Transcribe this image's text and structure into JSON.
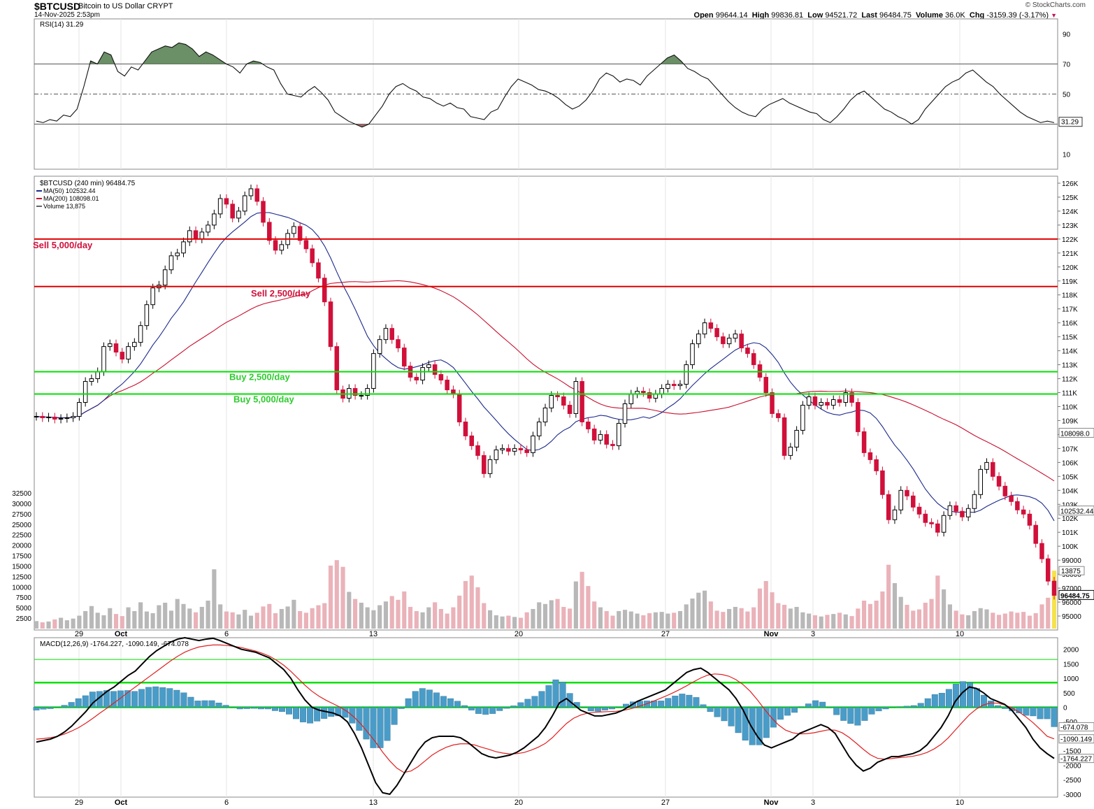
{
  "header": {
    "symbol": "$BTCUSD",
    "description": "Bitcoin to US Dollar  CRYPT",
    "timestamp": "14-Nov-2025 2:53pm",
    "brand": "© StockCharts.com",
    "quote": {
      "open_label": "Open",
      "open": "99644.14",
      "high_label": "High",
      "high": "99836.81",
      "low_label": "Low",
      "low": "94521.72",
      "last_label": "Last",
      "last": "96484.75",
      "volume_label": "Volume",
      "volume": "36.0K",
      "chg_label": "Chg",
      "chg": "-3159.39 (-3.17%)"
    }
  },
  "colors": {
    "up": "#000000",
    "down": "#d0103a",
    "ma50": "#1c2a8c",
    "ma200": "#c8102e",
    "sell_line": "#e00000",
    "buy_line": "#00e000",
    "rsi_fill_hi": "#6b8f66",
    "rsi_fill_lo": "#a06a6a",
    "macd_hist": "#4a9cc8",
    "signal": "#e02020",
    "vol_up": "#b8b8b8",
    "vol_down": "#eab2b9",
    "highlight": "#f5e24d"
  },
  "chart_data": [
    {
      "type": "line",
      "panel": "rsi",
      "legend": "RSI(14) 31.29",
      "ylim": [
        0,
        100
      ],
      "yticks": [
        10,
        30,
        50,
        70,
        90
      ],
      "ytick_labels": [
        "10",
        "",
        "50",
        "70",
        "90"
      ],
      "reference_lines": [
        30,
        50,
        70
      ],
      "current_label": "31.29",
      "values": [
        32,
        31,
        33,
        32,
        36,
        35,
        40,
        55,
        72,
        70,
        78,
        76,
        65,
        62,
        68,
        66,
        72,
        78,
        80,
        82,
        81,
        84,
        83,
        80,
        75,
        78,
        76,
        73,
        70,
        68,
        64,
        70,
        72,
        71,
        68,
        66,
        57,
        50,
        49,
        48,
        52,
        55,
        51,
        46,
        38,
        35,
        32,
        30,
        28,
        30,
        36,
        42,
        50,
        55,
        57,
        54,
        52,
        48,
        47,
        44,
        42,
        44,
        41,
        40,
        35,
        34,
        33,
        38,
        40,
        48,
        55,
        60,
        58,
        56,
        53,
        52,
        50,
        47,
        43,
        40,
        42,
        46,
        52,
        60,
        64,
        62,
        58,
        60,
        59,
        56,
        62,
        66,
        70,
        74,
        76,
        72,
        67,
        65,
        62,
        60,
        55,
        50,
        45,
        41,
        38,
        36,
        35,
        40,
        43,
        45,
        47,
        44,
        42,
        40,
        38,
        37,
        33,
        31,
        35,
        40,
        46,
        50,
        52,
        48,
        44,
        40,
        38,
        35,
        33,
        30,
        33,
        40,
        45,
        50,
        55,
        58,
        60,
        64,
        66,
        62,
        58,
        55,
        50,
        46,
        42,
        38,
        35,
        33,
        31,
        32,
        31
      ]
    },
    {
      "type": "candlestick",
      "panel": "price",
      "title": "$BTCUSD (240 min) 96484.75",
      "legend": [
        {
          "name": "MA(50) 102532.44",
          "color": "#1c2a8c"
        },
        {
          "name": "MA(200) 108098.01",
          "color": "#c8102e"
        },
        {
          "name": "Volume 13,875",
          "color": "#666666"
        }
      ],
      "ylim": [
        94000,
        126500
      ],
      "yticks": [
        95000,
        96000,
        97000,
        98000,
        99000,
        100000,
        101000,
        102000,
        103000,
        104000,
        105000,
        106000,
        107000,
        108000,
        109000,
        110000,
        111000,
        112000,
        113000,
        114000,
        115000,
        116000,
        117000,
        118000,
        119000,
        120000,
        121000,
        122000,
        123000,
        124000,
        125000,
        126000
      ],
      "ytick_labels": [
        "95000",
        "96000",
        "97000",
        "98000",
        "99000",
        "100K",
        "101K",
        "102K",
        "103K",
        "104K",
        "105K",
        "106K",
        "107K",
        "108K",
        "109K",
        "110K",
        "111K",
        "112K",
        "113K",
        "114K",
        "115K",
        "116K",
        "117K",
        "118K",
        "119K",
        "120K",
        "121K",
        "122K",
        "123K",
        "124K",
        "125K",
        "126K"
      ],
      "close": [
        109300,
        109200,
        109250,
        109100,
        109150,
        109200,
        109300,
        110300,
        111800,
        112000,
        112500,
        114300,
        114500,
        113900,
        113400,
        114300,
        114600,
        115800,
        117300,
        118500,
        118700,
        119800,
        120800,
        121000,
        121800,
        122600,
        122000,
        122500,
        123000,
        123800,
        124900,
        124500,
        123500,
        124000,
        125100,
        125600,
        124700,
        123200,
        121900,
        121200,
        121600,
        122400,
        122900,
        121900,
        121300,
        120300,
        119200,
        117500,
        114300,
        111200,
        110600,
        111300,
        110800,
        110800,
        111300,
        113800,
        114800,
        115600,
        114800,
        114200,
        112900,
        112100,
        111900,
        112800,
        113000,
        112300,
        111900,
        111200,
        110900,
        108900,
        107900,
        107200,
        106500,
        105200,
        106200,
        106900,
        107000,
        106800,
        107000,
        106900,
        106700,
        107900,
        108900,
        109900,
        110800,
        110700,
        110100,
        109500,
        111800,
        108900,
        108400,
        107600,
        108000,
        107300,
        107200,
        108800,
        110200,
        110900,
        111100,
        111000,
        110600,
        110900,
        111300,
        111600,
        111500,
        111600,
        113000,
        114500,
        115200,
        116000,
        115600,
        115000,
        114500,
        114900,
        115200,
        114200,
        113800,
        113000,
        112100,
        111000,
        109500,
        109200,
        106500,
        107100,
        108300,
        110100,
        110700,
        110100,
        110300,
        110100,
        110500,
        110300,
        111000,
        110300,
        108200,
        106700,
        106200,
        105400,
        103700,
        101900,
        102600,
        104000,
        103600,
        102800,
        102300,
        101700,
        101600,
        101000,
        102200,
        102900,
        102500,
        102100,
        102700,
        103700,
        105500,
        106000,
        105000,
        104300,
        103600,
        103200,
        102600,
        102300,
        101500,
        100200,
        99100,
        97500,
        96485
      ],
      "annotations": [
        {
          "label": "Sell 5,000/day",
          "price": 122000,
          "color": "#e00000"
        },
        {
          "label": "Sell 2,500/day",
          "price": 118600,
          "color": "#e00000"
        },
        {
          "label": "Buy 2,500/day",
          "price": 112500,
          "color": "#00e000"
        },
        {
          "label": "Buy 5,000/day",
          "price": 110900,
          "color": "#00e000"
        }
      ],
      "price_labels": [
        "108098.0",
        "102532.44",
        "96484.75"
      ]
    },
    {
      "type": "bar",
      "panel": "volume",
      "ylim": [
        0,
        33000
      ],
      "yticks": [
        2500,
        5000,
        7500,
        10000,
        12500,
        15000,
        17500,
        20000,
        22500,
        25000,
        27500,
        30000,
        32500
      ],
      "ytick_labels": [
        "2500",
        "5000",
        "7500",
        "10000",
        "12500",
        "15000",
        "17500",
        "20000",
        "22500",
        "25000",
        "27500",
        "30000",
        "32500"
      ],
      "current_label": "13875",
      "values": [
        1800,
        1500,
        1700,
        2200,
        2600,
        2000,
        2400,
        3100,
        4200,
        5400,
        3800,
        3200,
        4900,
        3500,
        3000,
        5100,
        4200,
        6300,
        4100,
        3700,
        5600,
        6200,
        4300,
        7100,
        5900,
        4800,
        3900,
        5200,
        6700,
        14200,
        5800,
        4100,
        3900,
        3400,
        4500,
        3100,
        3800,
        5300,
        5900,
        3700,
        4700,
        5300,
        6900,
        4200,
        3800,
        4900,
        5600,
        6100,
        15100,
        16400,
        14800,
        8800,
        7100,
        6200,
        5100,
        4400,
        5600,
        6500,
        7800,
        6900,
        8900,
        5200,
        4200,
        3900,
        5100,
        6300,
        4700,
        3600,
        5100,
        7900,
        11400,
        12700,
        9900,
        6100,
        4400,
        3200,
        2900,
        3100,
        2800,
        2600,
        3900,
        4700,
        6300,
        5900,
        6800,
        7100,
        5200,
        4800,
        11300,
        13600,
        10200,
        6500,
        5100,
        4200,
        3100,
        4200,
        4500,
        4100,
        3600,
        3200,
        3700,
        3900,
        4000,
        3600,
        3800,
        4200,
        5800,
        7200,
        8600,
        9100,
        6500,
        4300,
        4000,
        4700,
        5200,
        4900,
        4100,
        5100,
        9600,
        11400,
        8700,
        6100,
        5700,
        4800,
        5200,
        3900,
        3600,
        3200,
        2900,
        3300,
        3500,
        3800,
        3400,
        3000,
        4800,
        6700,
        5900,
        6700,
        8900,
        15300,
        10900,
        7600,
        5700,
        4300,
        4600,
        6200,
        7100,
        12700,
        9400,
        5800,
        4300,
        3400,
        3200,
        4200,
        4900,
        4600,
        3800,
        3300,
        3600,
        4100,
        3800,
        4000,
        3100,
        3700,
        5800,
        7400,
        13875
      ]
    },
    {
      "type": "line",
      "panel": "macd",
      "legend": "MACD(12,26,9) -1764.227, -1090.149, -674.078",
      "ylim": [
        -3100,
        2400
      ],
      "yticks": [
        -3000,
        -2500,
        -2000,
        -1500,
        -1000,
        -500,
        0,
        500,
        1000,
        1500,
        2000
      ],
      "ytick_labels": [
        "-3000",
        "-2500",
        "-2000",
        "-1500",
        "-1000",
        "-500",
        "0",
        "500",
        "1000",
        "1500",
        "2000"
      ],
      "reference_lines": [
        0,
        850,
        1650
      ],
      "current_labels": [
        "-674.078",
        "-1090.149",
        "-1764.227"
      ],
      "series": [
        {
          "name": "MACD",
          "values": [
            -1200,
            -1150,
            -1100,
            -1000,
            -850,
            -650,
            -400,
            -150,
            150,
            350,
            550,
            700,
            900,
            1100,
            1250,
            1500,
            1750,
            1950,
            2100,
            2250,
            2350,
            2400,
            2350,
            2300,
            2350,
            2380,
            2300,
            2200,
            2100,
            2000,
            1950,
            1900,
            1800,
            1700,
            1500,
            1300,
            1000,
            600,
            250,
            0,
            -100,
            -150,
            -200,
            -300,
            -500,
            -900,
            -1400,
            -2000,
            -2600,
            -2950,
            -3000,
            -2700,
            -2300,
            -1900,
            -1500,
            -1200,
            -1050,
            -1000,
            -1000,
            -1000,
            -1050,
            -1200,
            -1400,
            -1600,
            -1700,
            -1750,
            -1700,
            -1650,
            -1550,
            -1400,
            -1200,
            -1000,
            -700,
            -300,
            150,
            300,
            100,
            -100,
            -200,
            -300,
            -300,
            -250,
            -200,
            -100,
            50,
            200,
            300,
            400,
            500,
            600,
            800,
            1000,
            1200,
            1300,
            1350,
            1200,
            1000,
            800,
            600,
            300,
            -100,
            -600,
            -1000,
            -1300,
            -1400,
            -1300,
            -1200,
            -1100,
            -900,
            -800,
            -700,
            -600,
            -700,
            -900,
            -1300,
            -1700,
            -2000,
            -2200,
            -2100,
            -1900,
            -1800,
            -1700,
            -1700,
            -1650,
            -1600,
            -1500,
            -1300,
            -1000,
            -700,
            -300,
            200,
            500,
            700,
            650,
            500,
            300,
            200,
            100,
            -100,
            -400,
            -700,
            -1100,
            -1400,
            -1600,
            -1764
          ]
        },
        {
          "name": "Signal",
          "values": [
            -1100,
            -1080,
            -1050,
            -1000,
            -920,
            -820,
            -700,
            -550,
            -380,
            -200,
            -30,
            150,
            330,
            520,
            700,
            880,
            1060,
            1240,
            1420,
            1600,
            1760,
            1900,
            2000,
            2080,
            2120,
            2150,
            2150,
            2130,
            2100,
            2060,
            2000,
            1940,
            1860,
            1760,
            1620,
            1450,
            1240,
            1000,
            760,
            550,
            380,
            240,
            120,
            0,
            -150,
            -350,
            -600,
            -900,
            -1200,
            -1550,
            -1850,
            -2100,
            -2250,
            -2200,
            -2050,
            -1850,
            -1650,
            -1500,
            -1380,
            -1300,
            -1260,
            -1260,
            -1300,
            -1380,
            -1450,
            -1530,
            -1580,
            -1610,
            -1600,
            -1560,
            -1480,
            -1380,
            -1250,
            -1050,
            -800,
            -560,
            -380,
            -270,
            -200,
            -170,
            -160,
            -150,
            -140,
            -110,
            -60,
            10,
            90,
            180,
            280,
            380,
            490,
            610,
            740,
            880,
            1010,
            1110,
            1150,
            1130,
            1070,
            950,
            780,
            550,
            260,
            -60,
            -360,
            -610,
            -790,
            -880,
            -920,
            -910,
            -880,
            -830,
            -780,
            -790,
            -880,
            -1040,
            -1240,
            -1450,
            -1640,
            -1760,
            -1790,
            -1770,
            -1740,
            -1720,
            -1690,
            -1640,
            -1560,
            -1440,
            -1280,
            -1060,
            -790,
            -520,
            -260,
            -60,
            80,
            150,
            140,
            80,
            -20,
            -160,
            -330,
            -530,
            -760,
            -1000,
            -1090
          ]
        }
      ],
      "histogram": [
        -100,
        -70,
        -50,
        0,
        70,
        170,
        300,
        400,
        530,
        550,
        580,
        550,
        570,
        580,
        550,
        620,
        690,
        710,
        680,
        650,
        590,
        500,
        350,
        220,
        230,
        230,
        150,
        70,
        0,
        -60,
        -50,
        -40,
        -60,
        -60,
        -120,
        -150,
        -240,
        -400,
        -510,
        -550,
        -480,
        -390,
        -320,
        -300,
        -350,
        -550,
        -800,
        -1100,
        -1400,
        -1400,
        -1150,
        -600,
        -50,
        300,
        550,
        650,
        600,
        500,
        380,
        300,
        210,
        60,
        -100,
        -220,
        -250,
        -220,
        -120,
        -40,
        50,
        160,
        280,
        380,
        550,
        750,
        950,
        860,
        480,
        170,
        0,
        -130,
        -140,
        -100,
        -60,
        10,
        110,
        190,
        210,
        220,
        220,
        220,
        310,
        390,
        460,
        420,
        340,
        90,
        -150,
        -330,
        -470,
        -650,
        -880,
        -1140,
        -1300,
        -1300,
        -1050,
        -690,
        -420,
        -280,
        -180,
        20,
        120,
        230,
        180,
        -20,
        -260,
        -460,
        -560,
        -620,
        -460,
        -240,
        -130,
        -60,
        -10,
        20,
        40,
        60,
        140,
        300,
        440,
        490,
        620,
        800,
        890,
        850,
        650,
        420,
        220,
        60,
        -50,
        -130,
        -200,
        -280,
        -300,
        -400,
        -400,
        -674
      ]
    }
  ],
  "x_axis": {
    "labels": [
      "29",
      "Oct",
      "6",
      "13",
      "20",
      "27",
      "Nov",
      "3",
      "10"
    ],
    "bold": [
      false,
      true,
      false,
      false,
      false,
      false,
      true,
      false,
      false
    ]
  }
}
